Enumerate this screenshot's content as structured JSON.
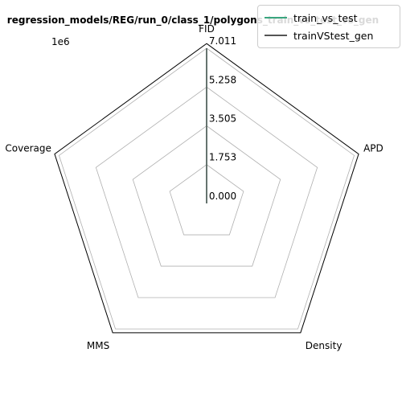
{
  "chart_data": {
    "type": "radar",
    "title": "regression_models/REG/run_0/class_1/polygons_train_vs_test_vs_gen",
    "axes": [
      "FID",
      "APD",
      "Density",
      "MMS",
      "Coverage"
    ],
    "scale_multiplier": "1e6",
    "radial_ticks": [
      "0.000",
      "1.753",
      "3.505",
      "5.258",
      "7.011"
    ],
    "rlim": [
      0,
      7.011
    ],
    "grid": true,
    "legend_position": "top-right",
    "series": [
      {
        "name": "train_vs_test",
        "color": "#3aa67f",
        "values": [
          7.011,
          0,
          0,
          0,
          0
        ]
      },
      {
        "name": "trainVStest_gen",
        "color": "#555555",
        "values": [
          7.011,
          0,
          0,
          0,
          0
        ]
      }
    ]
  }
}
